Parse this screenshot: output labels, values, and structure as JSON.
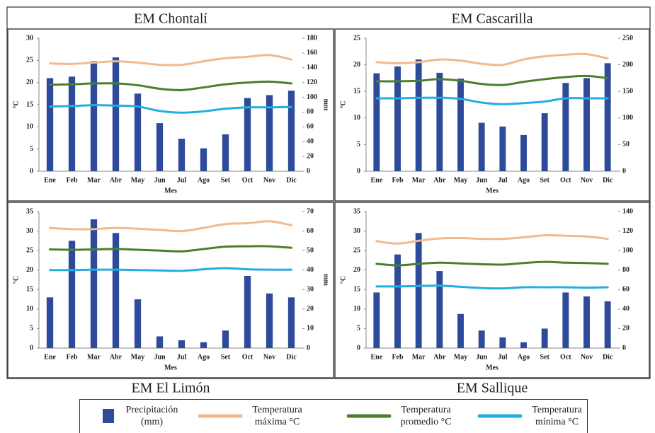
{
  "chart_data": [
    {
      "type": "bar",
      "title": "EM Chontalí",
      "x_label": "Mes",
      "y_label": "°C",
      "y2_label": "mm",
      "categories": [
        "Ene",
        "Feb",
        "Mar",
        "Abr",
        "May",
        "Jun",
        "Jul",
        "Ago",
        "Set",
        "Oct",
        "Nov",
        "Dic"
      ],
      "ylim": [
        0,
        30
      ],
      "yticks": [
        0,
        5,
        10,
        15,
        20,
        25,
        30
      ],
      "y2lim": [
        0,
        180
      ],
      "y2ticks": [
        0,
        20,
        40,
        60,
        80,
        100,
        120,
        140,
        160,
        180
      ],
      "series": [
        {
          "name": "Precipitación (mm)",
          "type": "bar",
          "axis": "y2",
          "color": "#2e4a9a",
          "values": [
            126,
            128,
            149,
            154,
            105,
            65,
            44,
            31,
            50,
            99,
            103,
            109
          ]
        },
        {
          "name": "Temperatura máxima °C",
          "type": "line",
          "color": "#f0b98e",
          "values": [
            24.3,
            24.2,
            24.5,
            24.8,
            24.5,
            24.0,
            24.0,
            24.8,
            25.5,
            25.8,
            26.2,
            25.2
          ]
        },
        {
          "name": "Temperatura promedio °C",
          "type": "line",
          "color": "#4a7f2e",
          "values": [
            19.5,
            19.6,
            19.8,
            19.8,
            19.4,
            18.6,
            18.3,
            18.9,
            19.6,
            20.0,
            20.2,
            19.8
          ]
        },
        {
          "name": "Temperatura mínima °C",
          "type": "line",
          "color": "#22aee0",
          "values": [
            14.6,
            14.7,
            14.9,
            14.8,
            14.6,
            13.6,
            13.2,
            13.5,
            14.1,
            14.4,
            14.4,
            14.5
          ]
        }
      ]
    },
    {
      "type": "bar",
      "title": "EM Cascarilla",
      "x_label": "Mes",
      "y_label": "°C",
      "categories": [
        "Ene",
        "Feb",
        "Mar",
        "Abr",
        "May",
        "Jun",
        "Jul",
        "Ago",
        "Set",
        "Oct",
        "Nov",
        "Dic"
      ],
      "ylim": [
        0,
        25
      ],
      "yticks": [
        0,
        5,
        10,
        15,
        20,
        25
      ],
      "y2lim": [
        0,
        250
      ],
      "y2ticks": [
        0,
        50,
        100,
        150,
        200,
        250
      ],
      "series": [
        {
          "type": "bar",
          "axis": "y2",
          "color": "#2e4a9a",
          "values": [
            184,
            197,
            210,
            185,
            174,
            91,
            84,
            68,
            109,
            166,
            175,
            203
          ]
        },
        {
          "type": "line",
          "color": "#f0b98e",
          "values": [
            20.5,
            20.3,
            20.5,
            21.0,
            20.8,
            20.2,
            20.0,
            21.0,
            21.6,
            21.9,
            22.0,
            21.2
          ]
        },
        {
          "type": "line",
          "color": "#4a7f2e",
          "values": [
            16.9,
            16.9,
            17.0,
            17.3,
            17.0,
            16.4,
            16.2,
            16.8,
            17.3,
            17.7,
            17.9,
            17.5
          ]
        },
        {
          "type": "line",
          "color": "#22aee0",
          "values": [
            13.7,
            13.7,
            13.8,
            13.8,
            13.6,
            12.9,
            12.6,
            12.8,
            13.1,
            13.7,
            13.7,
            13.7
          ]
        }
      ]
    },
    {
      "type": "bar",
      "title": "EM El Limón",
      "x_label": "Mes",
      "y_label": "°C",
      "y2_label": "mm",
      "categories": [
        "Ene",
        "Feb",
        "Mar",
        "Abr",
        "May",
        "Jun",
        "Jul",
        "Ago",
        "Set",
        "Oct",
        "Nov",
        "Dic"
      ],
      "ylim": [
        0,
        35
      ],
      "yticks": [
        0,
        5,
        10,
        15,
        20,
        25,
        30,
        35
      ],
      "y2lim": [
        0,
        70
      ],
      "y2ticks": [
        0,
        10,
        20,
        30,
        40,
        50,
        60,
        70
      ],
      "series": [
        {
          "type": "bar",
          "axis": "y2",
          "color": "#2e4a9a",
          "values": [
            26,
            55,
            66,
            59,
            25,
            6,
            4,
            3,
            9,
            37,
            28,
            26
          ]
        },
        {
          "type": "line",
          "color": "#f0b98e",
          "values": [
            30.8,
            30.5,
            30.5,
            30.8,
            30.6,
            30.3,
            30.0,
            30.8,
            31.8,
            32.0,
            32.5,
            31.5
          ]
        },
        {
          "type": "line",
          "color": "#4a7f2e",
          "values": [
            25.3,
            25.2,
            25.3,
            25.4,
            25.2,
            25.0,
            24.8,
            25.4,
            26.0,
            26.1,
            26.1,
            25.7
          ]
        },
        {
          "type": "line",
          "color": "#22aee0",
          "values": [
            20.0,
            20.0,
            20.1,
            20.1,
            20.0,
            19.9,
            19.8,
            20.2,
            20.5,
            20.2,
            20.1,
            20.1
          ]
        }
      ]
    },
    {
      "type": "bar",
      "title": "EM Sallique",
      "x_label": "Mes",
      "y_label": "°C",
      "categories": [
        "Ene",
        "Feb",
        "Mar",
        "Abr",
        "May",
        "Jun",
        "Jul",
        "Ago",
        "Set",
        "Oct",
        "Nov",
        "Dic"
      ],
      "ylim": [
        0,
        35
      ],
      "yticks": [
        0,
        5,
        10,
        15,
        20,
        25,
        30,
        35
      ],
      "y2lim": [
        0,
        140
      ],
      "y2ticks": [
        0,
        20,
        40,
        60,
        80,
        100,
        120,
        140
      ],
      "series": [
        {
          "type": "bar",
          "axis": "y2",
          "color": "#2e4a9a",
          "values": [
            57,
            96,
            118,
            79,
            35,
            18,
            11,
            6,
            20,
            57,
            53,
            48
          ]
        },
        {
          "type": "line",
          "color": "#f0b98e",
          "values": [
            27.4,
            26.8,
            27.5,
            28.1,
            28.2,
            28.0,
            28.0,
            28.4,
            28.9,
            28.8,
            28.6,
            28.0
          ]
        },
        {
          "type": "line",
          "color": "#4a7f2e",
          "values": [
            21.6,
            21.2,
            21.6,
            21.9,
            21.7,
            21.5,
            21.4,
            21.8,
            22.1,
            21.9,
            21.8,
            21.6
          ]
        },
        {
          "type": "line",
          "color": "#22aee0",
          "values": [
            15.8,
            15.8,
            15.9,
            16.0,
            15.7,
            15.4,
            15.3,
            15.6,
            15.6,
            15.6,
            15.5,
            15.6
          ]
        }
      ]
    }
  ]
}
